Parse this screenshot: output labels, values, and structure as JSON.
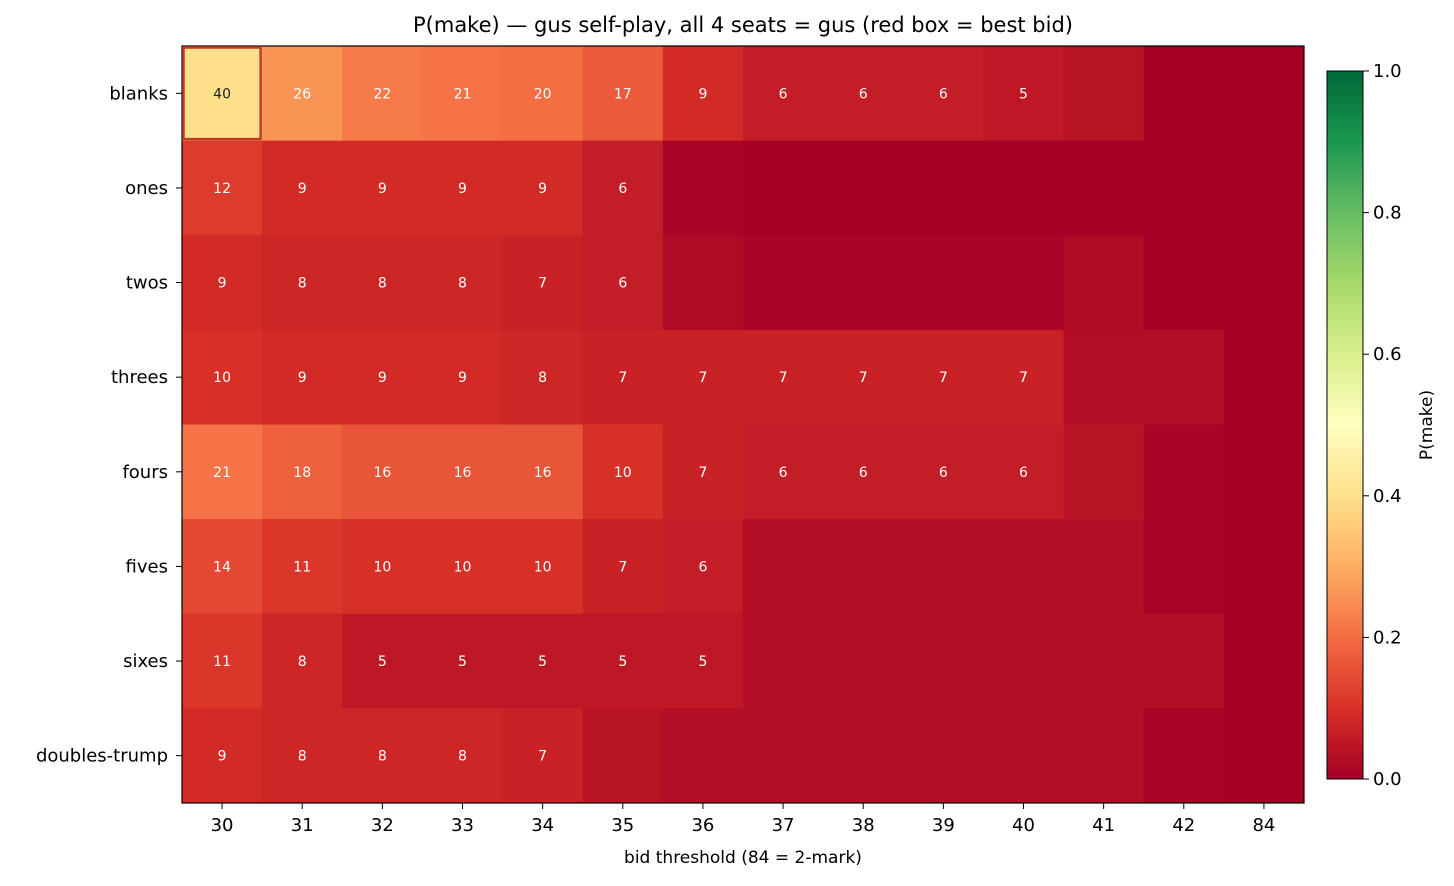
{
  "chart_data": {
    "type": "heatmap",
    "title": "P(make) — gus self-play, all 4 seats = gus  (red box = best bid)",
    "xlabel": "bid threshold (84 = 2-mark)",
    "ylabel": "",
    "x_categories": [
      "30",
      "31",
      "32",
      "33",
      "34",
      "35",
      "36",
      "37",
      "38",
      "39",
      "40",
      "41",
      "42",
      "84"
    ],
    "y_categories": [
      "blanks",
      "ones",
      "twos",
      "threes",
      "fours",
      "fives",
      "sixes",
      "doubles-trump"
    ],
    "values": [
      [
        0.4,
        0.26,
        0.22,
        0.21,
        0.2,
        0.17,
        0.09,
        0.06,
        0.06,
        0.06,
        0.05,
        0.04,
        0.0,
        0.0
      ],
      [
        0.12,
        0.09,
        0.09,
        0.09,
        0.09,
        0.06,
        0.01,
        0.0,
        0.0,
        0.0,
        0.0,
        0.0,
        0.0,
        0.0
      ],
      [
        0.09,
        0.08,
        0.08,
        0.08,
        0.07,
        0.06,
        0.02,
        0.01,
        0.01,
        0.01,
        0.01,
        0.02,
        0.0,
        0.0
      ],
      [
        0.1,
        0.09,
        0.09,
        0.09,
        0.08,
        0.07,
        0.07,
        0.07,
        0.07,
        0.07,
        0.07,
        0.03,
        0.03,
        0.0
      ],
      [
        0.21,
        0.18,
        0.16,
        0.16,
        0.16,
        0.1,
        0.07,
        0.06,
        0.06,
        0.06,
        0.06,
        0.04,
        0.01,
        0.0
      ],
      [
        0.14,
        0.11,
        0.1,
        0.1,
        0.1,
        0.07,
        0.06,
        0.03,
        0.03,
        0.03,
        0.03,
        0.03,
        0.01,
        0.0
      ],
      [
        0.11,
        0.08,
        0.05,
        0.05,
        0.05,
        0.05,
        0.05,
        0.03,
        0.03,
        0.03,
        0.03,
        0.03,
        0.03,
        0.0
      ],
      [
        0.09,
        0.08,
        0.08,
        0.08,
        0.07,
        0.04,
        0.03,
        0.03,
        0.03,
        0.03,
        0.03,
        0.03,
        0.01,
        0.0
      ]
    ],
    "cell_labels": [
      [
        "40",
        "26",
        "22",
        "21",
        "20",
        "17",
        "9",
        "6",
        "6",
        "6",
        "5",
        "",
        "",
        ""
      ],
      [
        "12",
        "9",
        "9",
        "9",
        "9",
        "6",
        "",
        "",
        "",
        "",
        "",
        "",
        "",
        ""
      ],
      [
        "9",
        "8",
        "8",
        "8",
        "7",
        "6",
        "",
        "",
        "",
        "",
        "",
        "",
        "",
        ""
      ],
      [
        "10",
        "9",
        "9",
        "9",
        "8",
        "7",
        "7",
        "7",
        "7",
        "7",
        "7",
        "",
        "",
        ""
      ],
      [
        "21",
        "18",
        "16",
        "16",
        "16",
        "10",
        "7",
        "6",
        "6",
        "6",
        "6",
        "",
        "",
        ""
      ],
      [
        "14",
        "11",
        "10",
        "10",
        "10",
        "7",
        "6",
        "",
        "",
        "",
        "",
        "",
        "",
        ""
      ],
      [
        "11",
        "8",
        "5",
        "5",
        "5",
        "5",
        "5",
        "",
        "",
        "",
        "",
        "",
        "",
        ""
      ],
      [
        "9",
        "8",
        "8",
        "8",
        "7",
        "",
        "",
        "",
        "",
        "",
        "",
        "",
        "",
        ""
      ]
    ],
    "best_bid": {
      "row": "blanks",
      "col": "30"
    },
    "best_bid_box_color": "#c0392b",
    "colormap": "RdYlGn",
    "vmin": 0.0,
    "vmax": 1.0,
    "colorbar": {
      "label": "P(make)",
      "ticks": [
        0.0,
        0.2,
        0.4,
        0.6,
        0.8,
        1.0
      ],
      "tick_labels": [
        "0.0",
        "0.2",
        "0.4",
        "0.6",
        "0.8",
        "1.0"
      ]
    }
  }
}
